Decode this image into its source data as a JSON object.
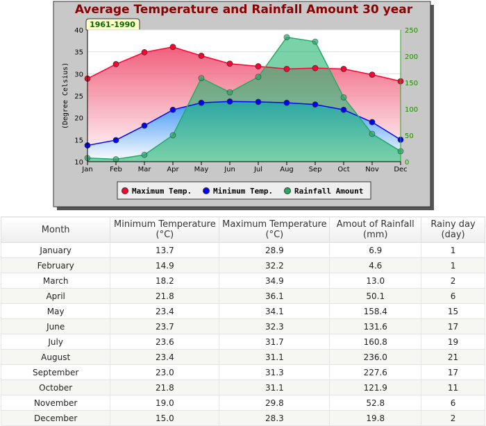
{
  "chart_data": {
    "type": "line+area",
    "title": "Average Temperature and Rainfall Amount 30 year",
    "subtitle": "1961-1990",
    "ylabel": "(Degree Celsius)",
    "ylim": [
      10,
      40
    ],
    "yticks": [
      10,
      15,
      20,
      25,
      30,
      35,
      40
    ],
    "y2lim": [
      0,
      250
    ],
    "y2ticks": [
      0,
      50,
      100,
      150,
      200,
      250
    ],
    "categories": [
      "Jan",
      "Feb",
      "Mar",
      "Apr",
      "May",
      "Jun",
      "Jul",
      "Aug",
      "Sep",
      "Oct",
      "Nov",
      "Dec"
    ],
    "series": [
      {
        "name": "Maximum Temp.",
        "axis": "left",
        "color": "#ff0033",
        "values": [
          28.9,
          32.2,
          34.9,
          36.1,
          34.1,
          32.3,
          31.7,
          31.1,
          31.3,
          31.1,
          29.8,
          28.3
        ]
      },
      {
        "name": "Minimum Temp.",
        "axis": "left",
        "color": "#0000ff",
        "values": [
          13.7,
          14.9,
          18.2,
          21.8,
          23.4,
          23.7,
          23.6,
          23.4,
          23.0,
          21.8,
          19.0,
          15.0
        ]
      },
      {
        "name": "Rainfall Amount",
        "axis": "right",
        "color": "#22aa66",
        "values": [
          6.9,
          4.6,
          13.0,
          50.1,
          158.4,
          131.6,
          160.8,
          236.0,
          227.6,
          121.9,
          52.8,
          19.8
        ]
      }
    ],
    "legend": "bottom"
  },
  "table": {
    "headers": [
      [
        "Month",
        ""
      ],
      [
        "Minimum Temperature",
        "(°C)"
      ],
      [
        "Maximum Temperature",
        "(°C)"
      ],
      [
        "Amout of Rainfall",
        "(mm)"
      ],
      [
        "Rainy day",
        "(day)"
      ]
    ],
    "rows": [
      [
        "January",
        "13.7",
        "28.9",
        "6.9",
        "1"
      ],
      [
        "February",
        "14.9",
        "32.2",
        "4.6",
        "1"
      ],
      [
        "March",
        "18.2",
        "34.9",
        "13.0",
        "2"
      ],
      [
        "April",
        "21.8",
        "36.1",
        "50.1",
        "6"
      ],
      [
        "May",
        "23.4",
        "34.1",
        "158.4",
        "15"
      ],
      [
        "June",
        "23.7",
        "32.3",
        "131.6",
        "17"
      ],
      [
        "July",
        "23.6",
        "31.7",
        "160.8",
        "19"
      ],
      [
        "August",
        "23.4",
        "31.1",
        "236.0",
        "21"
      ],
      [
        "September",
        "23.0",
        "31.3",
        "227.6",
        "17"
      ],
      [
        "October",
        "21.8",
        "31.1",
        "121.9",
        "11"
      ],
      [
        "November",
        "19.0",
        "29.8",
        "52.8",
        "6"
      ],
      [
        "December",
        "15.0",
        "28.3",
        "19.8",
        "2"
      ]
    ]
  }
}
